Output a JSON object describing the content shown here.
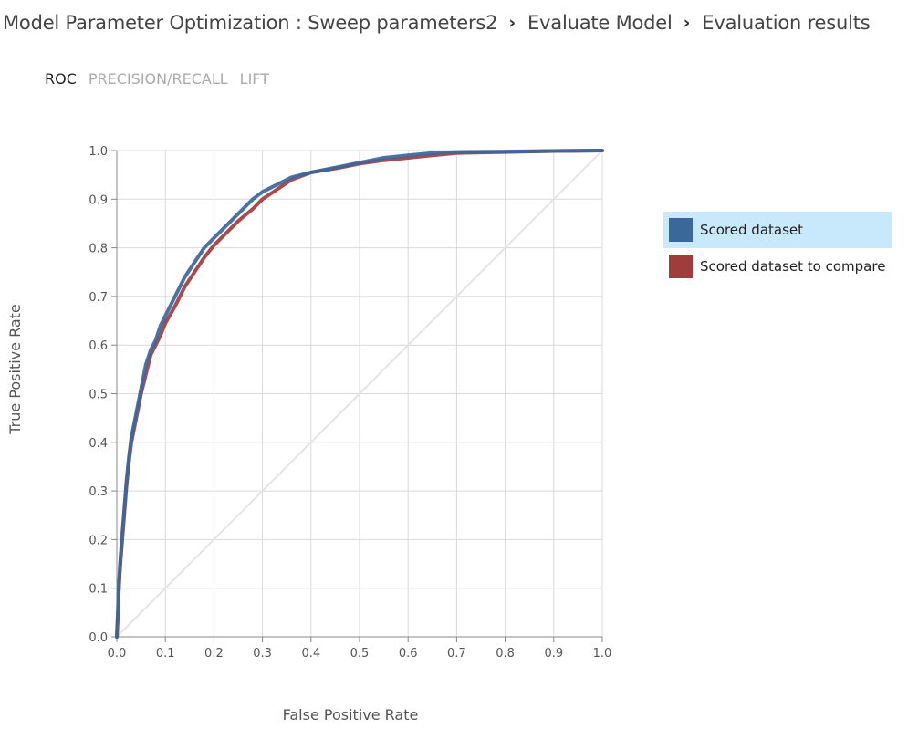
{
  "breadcrumb": {
    "items": [
      "Model Parameter Optimization : Sweep parameters2",
      "Evaluate Model",
      "Evaluation results"
    ],
    "separator": "›"
  },
  "tabs": [
    {
      "label": "ROC",
      "active": true
    },
    {
      "label": "PRECISION/RECALL",
      "active": false
    },
    {
      "label": "LIFT",
      "active": false
    }
  ],
  "legend": {
    "items": [
      {
        "label": "Scored dataset",
        "color": "#3a679c",
        "selected": true
      },
      {
        "label": "Scored dataset to compare",
        "color": "#a03c3c",
        "selected": false
      }
    ],
    "highlight_color": "#c8e9fb"
  },
  "chart_data": {
    "type": "line",
    "xlabel": "False Positive Rate",
    "ylabel": "True Positive Rate",
    "xlim": [
      0,
      1
    ],
    "ylim": [
      0,
      1
    ],
    "x_ticks": [
      "0.0",
      "0.1",
      "0.2",
      "0.3",
      "0.4",
      "0.5",
      "0.6",
      "0.7",
      "0.8",
      "0.9",
      "1.0"
    ],
    "y_ticks": [
      "0.0",
      "0.1",
      "0.2",
      "0.3",
      "0.4",
      "0.5",
      "0.6",
      "0.7",
      "0.8",
      "0.9",
      "1.0"
    ],
    "grid": true,
    "legend_position": "right",
    "diagonal_color": "#e4e4e4",
    "series": [
      {
        "name": "Scored dataset",
        "color": "#3a679c",
        "x": [
          0,
          0.002,
          0.004,
          0.006,
          0.008,
          0.012,
          0.016,
          0.02,
          0.025,
          0.03,
          0.04,
          0.05,
          0.06,
          0.07,
          0.08,
          0.09,
          0.1,
          0.12,
          0.14,
          0.16,
          0.18,
          0.2,
          0.22,
          0.25,
          0.28,
          0.3,
          0.33,
          0.36,
          0.4,
          0.45,
          0.5,
          0.55,
          0.6,
          0.65,
          0.7,
          0.8,
          0.9,
          1.0
        ],
        "y": [
          0,
          0.05,
          0.1,
          0.14,
          0.17,
          0.22,
          0.27,
          0.32,
          0.37,
          0.41,
          0.46,
          0.51,
          0.56,
          0.59,
          0.61,
          0.64,
          0.66,
          0.7,
          0.74,
          0.77,
          0.8,
          0.82,
          0.84,
          0.87,
          0.9,
          0.915,
          0.93,
          0.945,
          0.955,
          0.965,
          0.975,
          0.985,
          0.99,
          0.995,
          0.997,
          0.998,
          0.999,
          1.0
        ]
      },
      {
        "name": "Scored dataset to compare",
        "color": "#a03c3c",
        "x": [
          0,
          0.002,
          0.004,
          0.006,
          0.008,
          0.012,
          0.016,
          0.02,
          0.025,
          0.03,
          0.04,
          0.05,
          0.06,
          0.07,
          0.08,
          0.09,
          0.1,
          0.12,
          0.14,
          0.16,
          0.18,
          0.2,
          0.22,
          0.25,
          0.28,
          0.3,
          0.33,
          0.36,
          0.4,
          0.45,
          0.5,
          0.55,
          0.6,
          0.65,
          0.7,
          0.8,
          0.9,
          1.0
        ],
        "y": [
          0,
          0.04,
          0.09,
          0.13,
          0.16,
          0.21,
          0.26,
          0.31,
          0.36,
          0.4,
          0.45,
          0.5,
          0.54,
          0.58,
          0.6,
          0.62,
          0.645,
          0.68,
          0.72,
          0.75,
          0.78,
          0.805,
          0.825,
          0.855,
          0.88,
          0.9,
          0.92,
          0.94,
          0.955,
          0.963,
          0.973,
          0.98,
          0.985,
          0.99,
          0.995,
          0.997,
          0.999,
          1.0
        ]
      }
    ]
  }
}
